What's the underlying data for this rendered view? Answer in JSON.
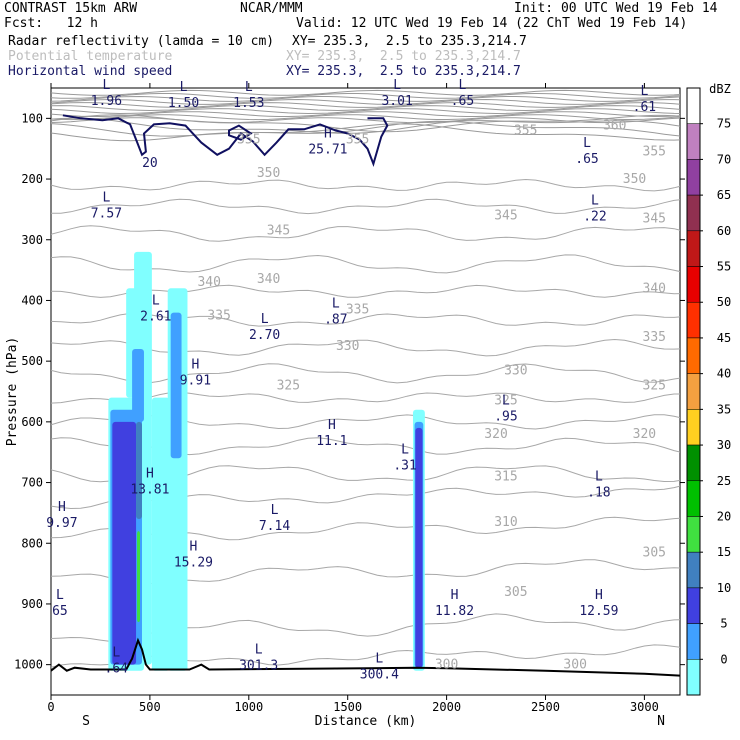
{
  "header": {
    "line1_left": "CONTRAST 15km ARW",
    "line1_mid": "NCAR/MMM",
    "line1_right": "Init: 00 UTC Wed 19 Feb 14",
    "line2_left": "Fcst:   12 h",
    "line2_right": "Valid: 12 UTC Wed 19 Feb 14 (22 ChT Wed 19 Feb 14)",
    "field1_name": "Radar reflectivity (lamda = 10 cm)",
    "field1_xy": "XY= 235.3,  2.5 to 235.3,214.7",
    "field2_name": "Potential temperature",
    "field2_xy": "XY= 235.3,  2.5 to 235.3,214.7",
    "field3_name": "Horizontal wind speed",
    "field3_xy": "XY= 235.3,  2.5 to 235.3,214.7"
  },
  "chart_data": {
    "type": "cross-section",
    "xlabel": "Distance (km)",
    "ylabel": "Pressure (hPa)",
    "x_ticks": [
      0,
      500,
      1000,
      1500,
      2000,
      2500,
      3000
    ],
    "y_ticks": [
      100,
      200,
      300,
      400,
      500,
      600,
      700,
      800,
      900,
      1000
    ],
    "xlim": [
      0,
      3180
    ],
    "ylim": [
      1050,
      50
    ],
    "x_end_labels": {
      "left": "S",
      "right": "N"
    },
    "colorbar": {
      "unit": "dBZ",
      "levels": [
        "75",
        "70",
        "65",
        "60",
        "55",
        "50",
        "45",
        "40",
        "35",
        "30",
        "25",
        "20",
        "15",
        "10",
        "5",
        "0"
      ],
      "colors": [
        "#c080c0",
        "#9040a0",
        "#903050",
        "#c01818",
        "#e80000",
        "#ff3000",
        "#ff6a00",
        "#f4a040",
        "#ffd020",
        "#009000",
        "#00c000",
        "#40e040",
        "#4080c0",
        "#4040e0",
        "#40a0ff",
        "#80ffff",
        "#ffffff"
      ]
    },
    "theta_labels": [
      {
        "x": 1000,
        "p": 135,
        "t": "355"
      },
      {
        "x": 1550,
        "p": 135,
        "t": "355"
      },
      {
        "x": 2400,
        "p": 120,
        "t": "355"
      },
      {
        "x": 2850,
        "p": 112,
        "t": "360"
      },
      {
        "x": 3050,
        "p": 155,
        "t": "355"
      },
      {
        "x": 1100,
        "p": 190,
        "t": "350"
      },
      {
        "x": 2950,
        "p": 200,
        "t": "350"
      },
      {
        "x": 1150,
        "p": 285,
        "t": "345"
      },
      {
        "x": 2300,
        "p": 260,
        "t": "345"
      },
      {
        "x": 3050,
        "p": 265,
        "t": "345"
      },
      {
        "x": 800,
        "p": 370,
        "t": "340"
      },
      {
        "x": 1100,
        "p": 365,
        "t": "340"
      },
      {
        "x": 3050,
        "p": 380,
        "t": "340"
      },
      {
        "x": 850,
        "p": 425,
        "t": "335"
      },
      {
        "x": 1550,
        "p": 415,
        "t": "335"
      },
      {
        "x": 3050,
        "p": 460,
        "t": "335"
      },
      {
        "x": 1500,
        "p": 475,
        "t": "330"
      },
      {
        "x": 2350,
        "p": 515,
        "t": "330"
      },
      {
        "x": 1200,
        "p": 540,
        "t": "325"
      },
      {
        "x": 2300,
        "p": 565,
        "t": "325"
      },
      {
        "x": 3050,
        "p": 540,
        "t": "325"
      },
      {
        "x": 2250,
        "p": 620,
        "t": "320"
      },
      {
        "x": 3000,
        "p": 620,
        "t": "320"
      },
      {
        "x": 2300,
        "p": 690,
        "t": "315"
      },
      {
        "x": 2300,
        "p": 765,
        "t": "310"
      },
      {
        "x": 3050,
        "p": 815,
        "t": "305"
      },
      {
        "x": 2350,
        "p": 880,
        "t": "305"
      },
      {
        "x": 2000,
        "p": 1000,
        "t": "300"
      },
      {
        "x": 2650,
        "p": 1000,
        "t": "300"
      }
    ],
    "extrema": [
      {
        "x": 280,
        "p": 65,
        "k": "L",
        "v": "1.96"
      },
      {
        "x": 670,
        "p": 68,
        "k": "L",
        "v": "1.50"
      },
      {
        "x": 1000,
        "p": 68,
        "k": "L",
        "v": "1.53"
      },
      {
        "x": 1750,
        "p": 65,
        "k": "L",
        "v": "3.01"
      },
      {
        "x": 2080,
        "p": 65,
        "k": "L",
        "v": ".65"
      },
      {
        "x": 3000,
        "p": 75,
        "k": "L",
        "v": ".61"
      },
      {
        "x": 1400,
        "p": 145,
        "k": "H",
        "v": "25.71"
      },
      {
        "x": 2710,
        "p": 160,
        "k": "L",
        "v": ".65"
      },
      {
        "x": 280,
        "p": 250,
        "k": "L",
        "v": "7.57"
      },
      {
        "x": 2750,
        "p": 255,
        "k": "L",
        "v": ".22"
      },
      {
        "x": 530,
        "p": 420,
        "k": "L",
        "v": "2.61"
      },
      {
        "x": 1080,
        "p": 450,
        "k": "L",
        "v": "2.70"
      },
      {
        "x": 1440,
        "p": 425,
        "k": "L",
        "v": ".87"
      },
      {
        "x": 730,
        "p": 525,
        "k": "H",
        "v": "9.91"
      },
      {
        "x": 2300,
        "p": 585,
        "k": "L",
        "v": ".95"
      },
      {
        "x": 1420,
        "p": 625,
        "k": "H",
        "v": "11.1"
      },
      {
        "x": 1790,
        "p": 665,
        "k": "L",
        "v": ".31"
      },
      {
        "x": 500,
        "p": 705,
        "k": "H",
        "v": "13.81"
      },
      {
        "x": 2770,
        "p": 710,
        "k": "L",
        "v": ".18"
      },
      {
        "x": 55,
        "p": 760,
        "k": "H",
        "v": "9.97"
      },
      {
        "x": 1130,
        "p": 765,
        "k": "L",
        "v": "7.14"
      },
      {
        "x": 720,
        "p": 825,
        "k": "H",
        "v": "15.29"
      },
      {
        "x": 45,
        "p": 905,
        "k": "L",
        "v": "65"
      },
      {
        "x": 2040,
        "p": 905,
        "k": "H",
        "v": "11.82"
      },
      {
        "x": 2770,
        "p": 905,
        "k": "H",
        "v": "12.59"
      },
      {
        "x": 330,
        "p": 1000,
        "k": "L",
        "v": ".64"
      },
      {
        "x": 1050,
        "p": 995,
        "k": "L",
        "v": "301.3"
      },
      {
        "x": 1660,
        "p": 1010,
        "k": "L",
        "v": "300.4"
      }
    ],
    "wind_contour_label": {
      "x": 500,
      "p": 180,
      "t": "20"
    }
  }
}
